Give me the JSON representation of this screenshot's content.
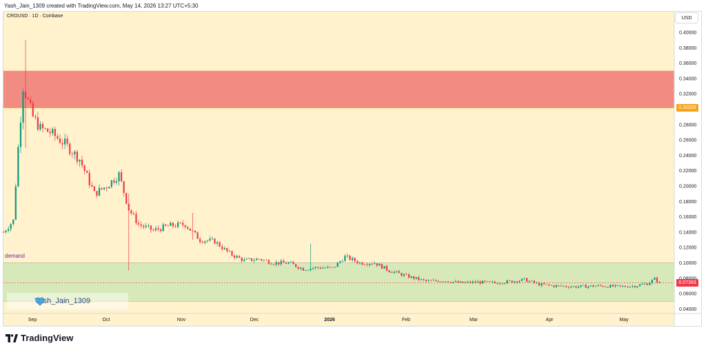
{
  "header": {
    "title": "Yash_Jain_1309 created with TradingView.com, May 14, 2026 13:27 UTC+5:30"
  },
  "symbol_line": "CROUSD · 1D · Coinbase",
  "currency_button": "USD",
  "zones": {
    "supply": {
      "top": 0.35,
      "bottom": 0.30205,
      "color": "#f28b82"
    },
    "demand": {
      "top": 0.1,
      "bottom": 0.05,
      "color": "#d7e9b9",
      "label": "demand"
    }
  },
  "price_tags": [
    {
      "value": "0.30205",
      "price": 0.30205,
      "color": "#f7a21b"
    },
    {
      "value": "0.07383",
      "price": 0.07383,
      "color": "#f23645"
    }
  ],
  "watermark": {
    "icon": "heart-icon",
    "text": "Yash_Jain_1309"
  },
  "brand": {
    "icon": "tradingview-logo-icon",
    "text": "TradingView"
  },
  "colors": {
    "up": "#089981",
    "down": "#f23645",
    "background": "#fff2cc"
  },
  "chart_data": {
    "type": "candlestick",
    "y_axis": {
      "min": 0.04,
      "max": 0.4,
      "ticks": [
        "0.40000",
        "0.38000",
        "0.36000",
        "0.34000",
        "0.32000",
        "0.30000",
        "0.28000",
        "0.26000",
        "0.24000",
        "0.22000",
        "0.20000",
        "0.18000",
        "0.16000",
        "0.14000",
        "0.12000",
        "0.10000",
        "0.08000",
        "0.06000",
        "0.04000"
      ]
    },
    "x_axis": {
      "labels": [
        "Sep",
        "Oct",
        "Nov",
        "Dec",
        "2026",
        "Feb",
        "Mar",
        "Apr",
        "May"
      ]
    },
    "last_price": 0.07383,
    "close_path": [
      [
        "2025-08-20",
        0.14
      ],
      [
        "2025-08-24",
        0.155
      ],
      [
        "2025-08-26",
        0.25
      ],
      [
        "2025-08-28",
        0.33
      ],
      [
        "2025-09-01",
        0.29
      ],
      [
        "2025-09-04",
        0.275
      ],
      [
        "2025-09-08",
        0.27
      ],
      [
        "2025-09-14",
        0.255
      ],
      [
        "2025-09-20",
        0.235
      ],
      [
        "2025-09-26",
        0.19
      ],
      [
        "2025-10-01",
        0.2
      ],
      [
        "2025-10-06",
        0.215
      ],
      [
        "2025-10-10",
        0.17
      ],
      [
        "2025-10-14",
        0.15
      ],
      [
        "2025-10-20",
        0.142
      ],
      [
        "2025-10-26",
        0.148
      ],
      [
        "2025-11-02",
        0.15
      ],
      [
        "2025-11-08",
        0.13
      ],
      [
        "2025-11-14",
        0.128
      ],
      [
        "2025-11-20",
        0.112
      ],
      [
        "2025-11-26",
        0.103
      ],
      [
        "2025-12-02",
        0.105
      ],
      [
        "2025-12-08",
        0.1
      ],
      [
        "2025-12-14",
        0.1
      ],
      [
        "2025-12-20",
        0.092
      ],
      [
        "2025-12-26",
        0.094
      ],
      [
        "2026-01-01",
        0.093
      ],
      [
        "2026-01-06",
        0.108
      ],
      [
        "2026-01-12",
        0.1
      ],
      [
        "2026-01-18",
        0.1
      ],
      [
        "2026-01-24",
        0.09
      ],
      [
        "2026-02-01",
        0.082
      ],
      [
        "2026-02-08",
        0.076
      ],
      [
        "2026-02-15",
        0.077
      ],
      [
        "2026-02-22",
        0.074
      ],
      [
        "2026-03-01",
        0.075
      ],
      [
        "2026-03-08",
        0.074
      ],
      [
        "2026-03-15",
        0.076
      ],
      [
        "2026-03-20",
        0.078
      ],
      [
        "2026-03-26",
        0.072
      ],
      [
        "2026-04-01",
        0.07
      ],
      [
        "2026-04-10",
        0.069
      ],
      [
        "2026-04-20",
        0.07
      ],
      [
        "2026-04-28",
        0.069
      ],
      [
        "2026-05-04",
        0.07
      ],
      [
        "2026-05-09",
        0.073
      ],
      [
        "2026-05-12",
        0.079
      ],
      [
        "2026-05-14",
        0.07383
      ]
    ],
    "spikes": [
      {
        "date": "2025-08-29",
        "high": 0.39,
        "low": 0.25
      },
      {
        "date": "2025-10-10",
        "high": 0.19,
        "low": 0.09
      },
      {
        "date": "2025-11-05",
        "high": 0.165,
        "low": 0.13
      },
      {
        "date": "2025-12-23",
        "high": 0.125,
        "low": 0.09
      }
    ]
  }
}
